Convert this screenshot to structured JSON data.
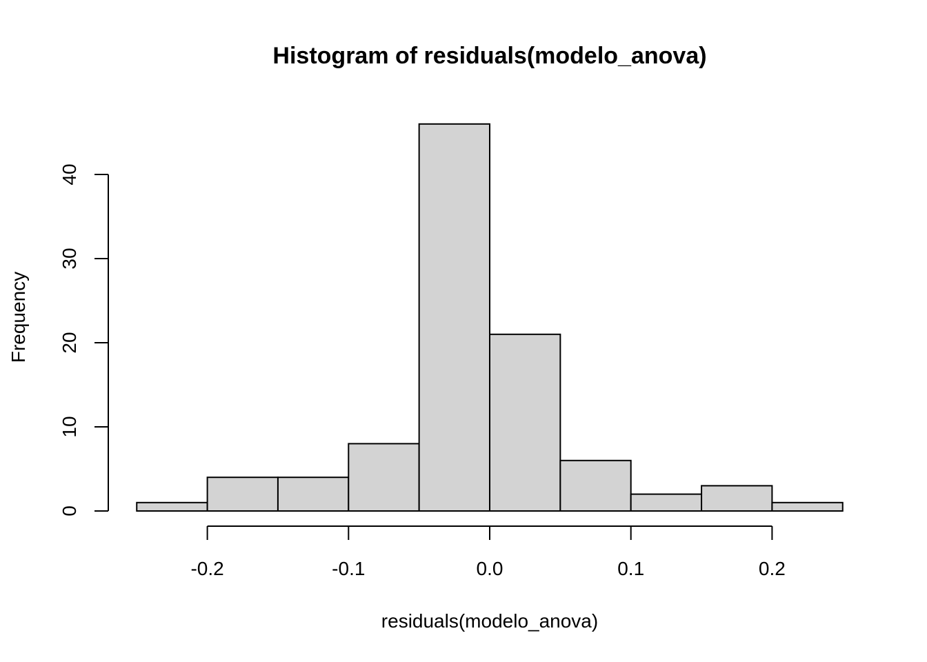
{
  "chart_data": {
    "type": "bar",
    "title": "Histogram of residuals(modelo_anova)",
    "xlabel": "residuals(modelo_anova)",
    "ylabel": "Frequency",
    "bins": [
      {
        "from": -0.25,
        "to": -0.2,
        "count": 1
      },
      {
        "from": -0.2,
        "to": -0.15,
        "count": 4
      },
      {
        "from": -0.15,
        "to": -0.1,
        "count": 4
      },
      {
        "from": -0.1,
        "to": -0.05,
        "count": 8
      },
      {
        "from": -0.05,
        "to": 0.0,
        "count": 46
      },
      {
        "from": 0.0,
        "to": 0.05,
        "count": 21
      },
      {
        "from": 0.05,
        "to": 0.1,
        "count": 6
      },
      {
        "from": 0.1,
        "to": 0.15,
        "count": 2
      },
      {
        "from": 0.15,
        "to": 0.2,
        "count": 3
      },
      {
        "from": 0.2,
        "to": 0.25,
        "count": 1
      }
    ],
    "x_ticks": [
      {
        "value": -0.2,
        "label": "-0.2"
      },
      {
        "value": -0.1,
        "label": "-0.1"
      },
      {
        "value": 0.0,
        "label": "0.0"
      },
      {
        "value": 0.1,
        "label": "0.1"
      },
      {
        "value": 0.2,
        "label": "0.2"
      }
    ],
    "y_ticks": [
      {
        "value": 0,
        "label": "0"
      },
      {
        "value": 10,
        "label": "10"
      },
      {
        "value": 20,
        "label": "20"
      },
      {
        "value": 30,
        "label": "30"
      },
      {
        "value": 40,
        "label": "40"
      }
    ],
    "xlim": [
      -0.25,
      0.25
    ],
    "ylim": [
      0,
      46
    ],
    "grid": false,
    "bar_color": "#d3d3d3",
    "border_color": "#000000"
  }
}
